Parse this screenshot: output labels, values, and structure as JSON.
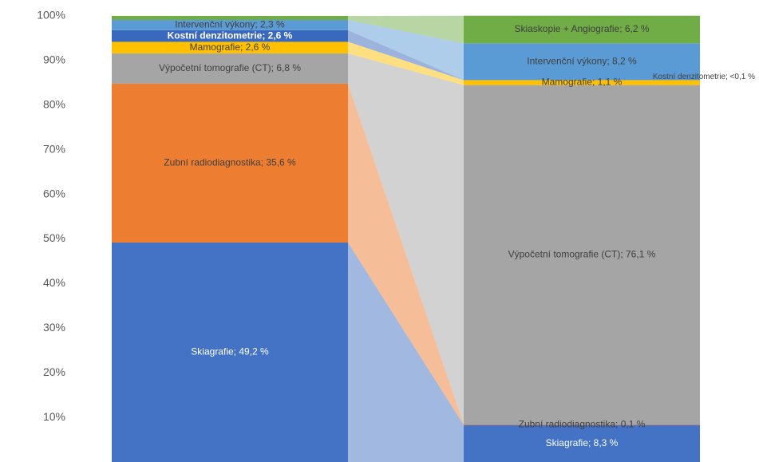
{
  "chart_data": {
    "type": "stacked_bar_100",
    "categories": [
      null,
      null
    ],
    "ylim": [
      0,
      100
    ],
    "yticks": [
      {
        "value": 10,
        "label": "10%"
      },
      {
        "value": 20,
        "label": "20%"
      },
      {
        "value": 30,
        "label": "30%"
      },
      {
        "value": 40,
        "label": "40%"
      },
      {
        "value": 50,
        "label": "50%"
      },
      {
        "value": 60,
        "label": "60%"
      },
      {
        "value": 70,
        "label": "70%"
      },
      {
        "value": 80,
        "label": "80%"
      },
      {
        "value": 90,
        "label": "90%"
      },
      {
        "value": 100,
        "label": "100%"
      }
    ],
    "series": [
      {
        "name": "Skiagrafie",
        "color": "#4472c4",
        "values": [
          49.2,
          8.3
        ],
        "value_labels": [
          "Skiagrafie; 49,2 %",
          "Skiagrafie; 8,3 %"
        ]
      },
      {
        "name": "Zubní radiodiagnostika",
        "color": "#ed7d31",
        "values": [
          35.6,
          0.1
        ],
        "value_labels": [
          "Zubní radiodiagnostika; 35,6 %",
          "Zubní radiodiagnostika; 0,1 %"
        ]
      },
      {
        "name": "Výpočetní tomografie (CT)",
        "color": "#a5a5a5",
        "values": [
          6.8,
          76.1
        ],
        "value_labels": [
          "Výpočetní tomografie (CT); 6,8 %",
          "Výpočetní tomografie (CT); 76,1 %"
        ]
      },
      {
        "name": "Mamografie",
        "color": "#ffc000",
        "values": [
          2.6,
          1.1
        ],
        "value_labels": [
          "Mamografie; 2,6 %",
          "Mamografie; 1,1 %"
        ]
      },
      {
        "name": "Kostní denzitometrie",
        "color": "#3a68bd",
        "values": [
          2.6,
          0.05
        ],
        "value_labels": [
          "Kostní denzitometrie; 2,6 %",
          "Kostní denzitometrie; <0,1 %"
        ]
      },
      {
        "name": "Intervenční výkony",
        "color": "#5b9bd5",
        "values": [
          2.3,
          8.2
        ],
        "value_labels": [
          "Intervenční výkony; 2,3 %",
          "Intervenční výkony; 8,2 %"
        ]
      },
      {
        "name": "Skiaskopie + Angiografie",
        "color": "#70ad47",
        "values": [
          0.9,
          6.2
        ],
        "value_labels": [
          null,
          "Skiaskopie + Angiografie; 6,2 %"
        ]
      }
    ]
  }
}
